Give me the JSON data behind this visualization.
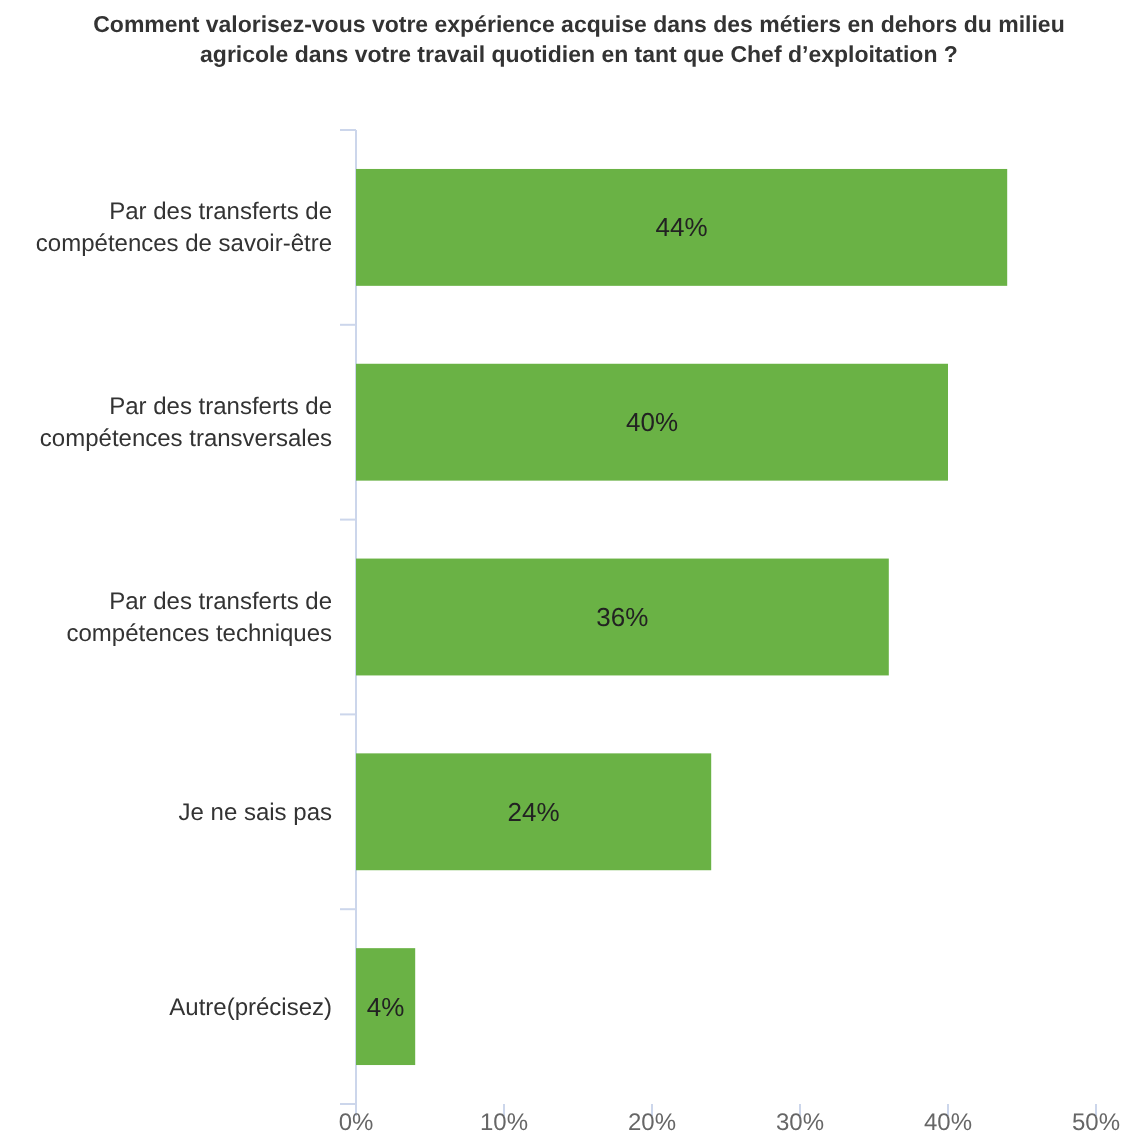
{
  "chart_data": {
    "type": "bar",
    "orientation": "horizontal",
    "title": "Comment valorisez-vous votre expérience acquise dans des métiers en dehors du milieu agricole dans votre travail quotidien en tant que Chef d’exploitation ?",
    "categories": [
      "Par des transferts de compétences de savoir-être",
      "Par des transferts de compétences transversales",
      "Par des transferts de compétences techniques",
      "Je ne sais pas",
      "Autre(précisez)"
    ],
    "values": [
      44,
      40,
      36,
      24,
      4
    ],
    "color": "#6ab245",
    "value_labels": [
      "44%",
      "40%",
      "36%",
      "24%",
      "4%"
    ],
    "xlim": [
      0,
      50
    ],
    "xticks": [
      {
        "value": 0,
        "label": "0%"
      },
      {
        "value": 10,
        "label": "10%"
      },
      {
        "value": 20,
        "label": "20%"
      },
      {
        "value": 30,
        "label": "30%"
      },
      {
        "value": 40,
        "label": "40%"
      },
      {
        "value": 50,
        "label": "50%"
      }
    ],
    "grid": false
  }
}
